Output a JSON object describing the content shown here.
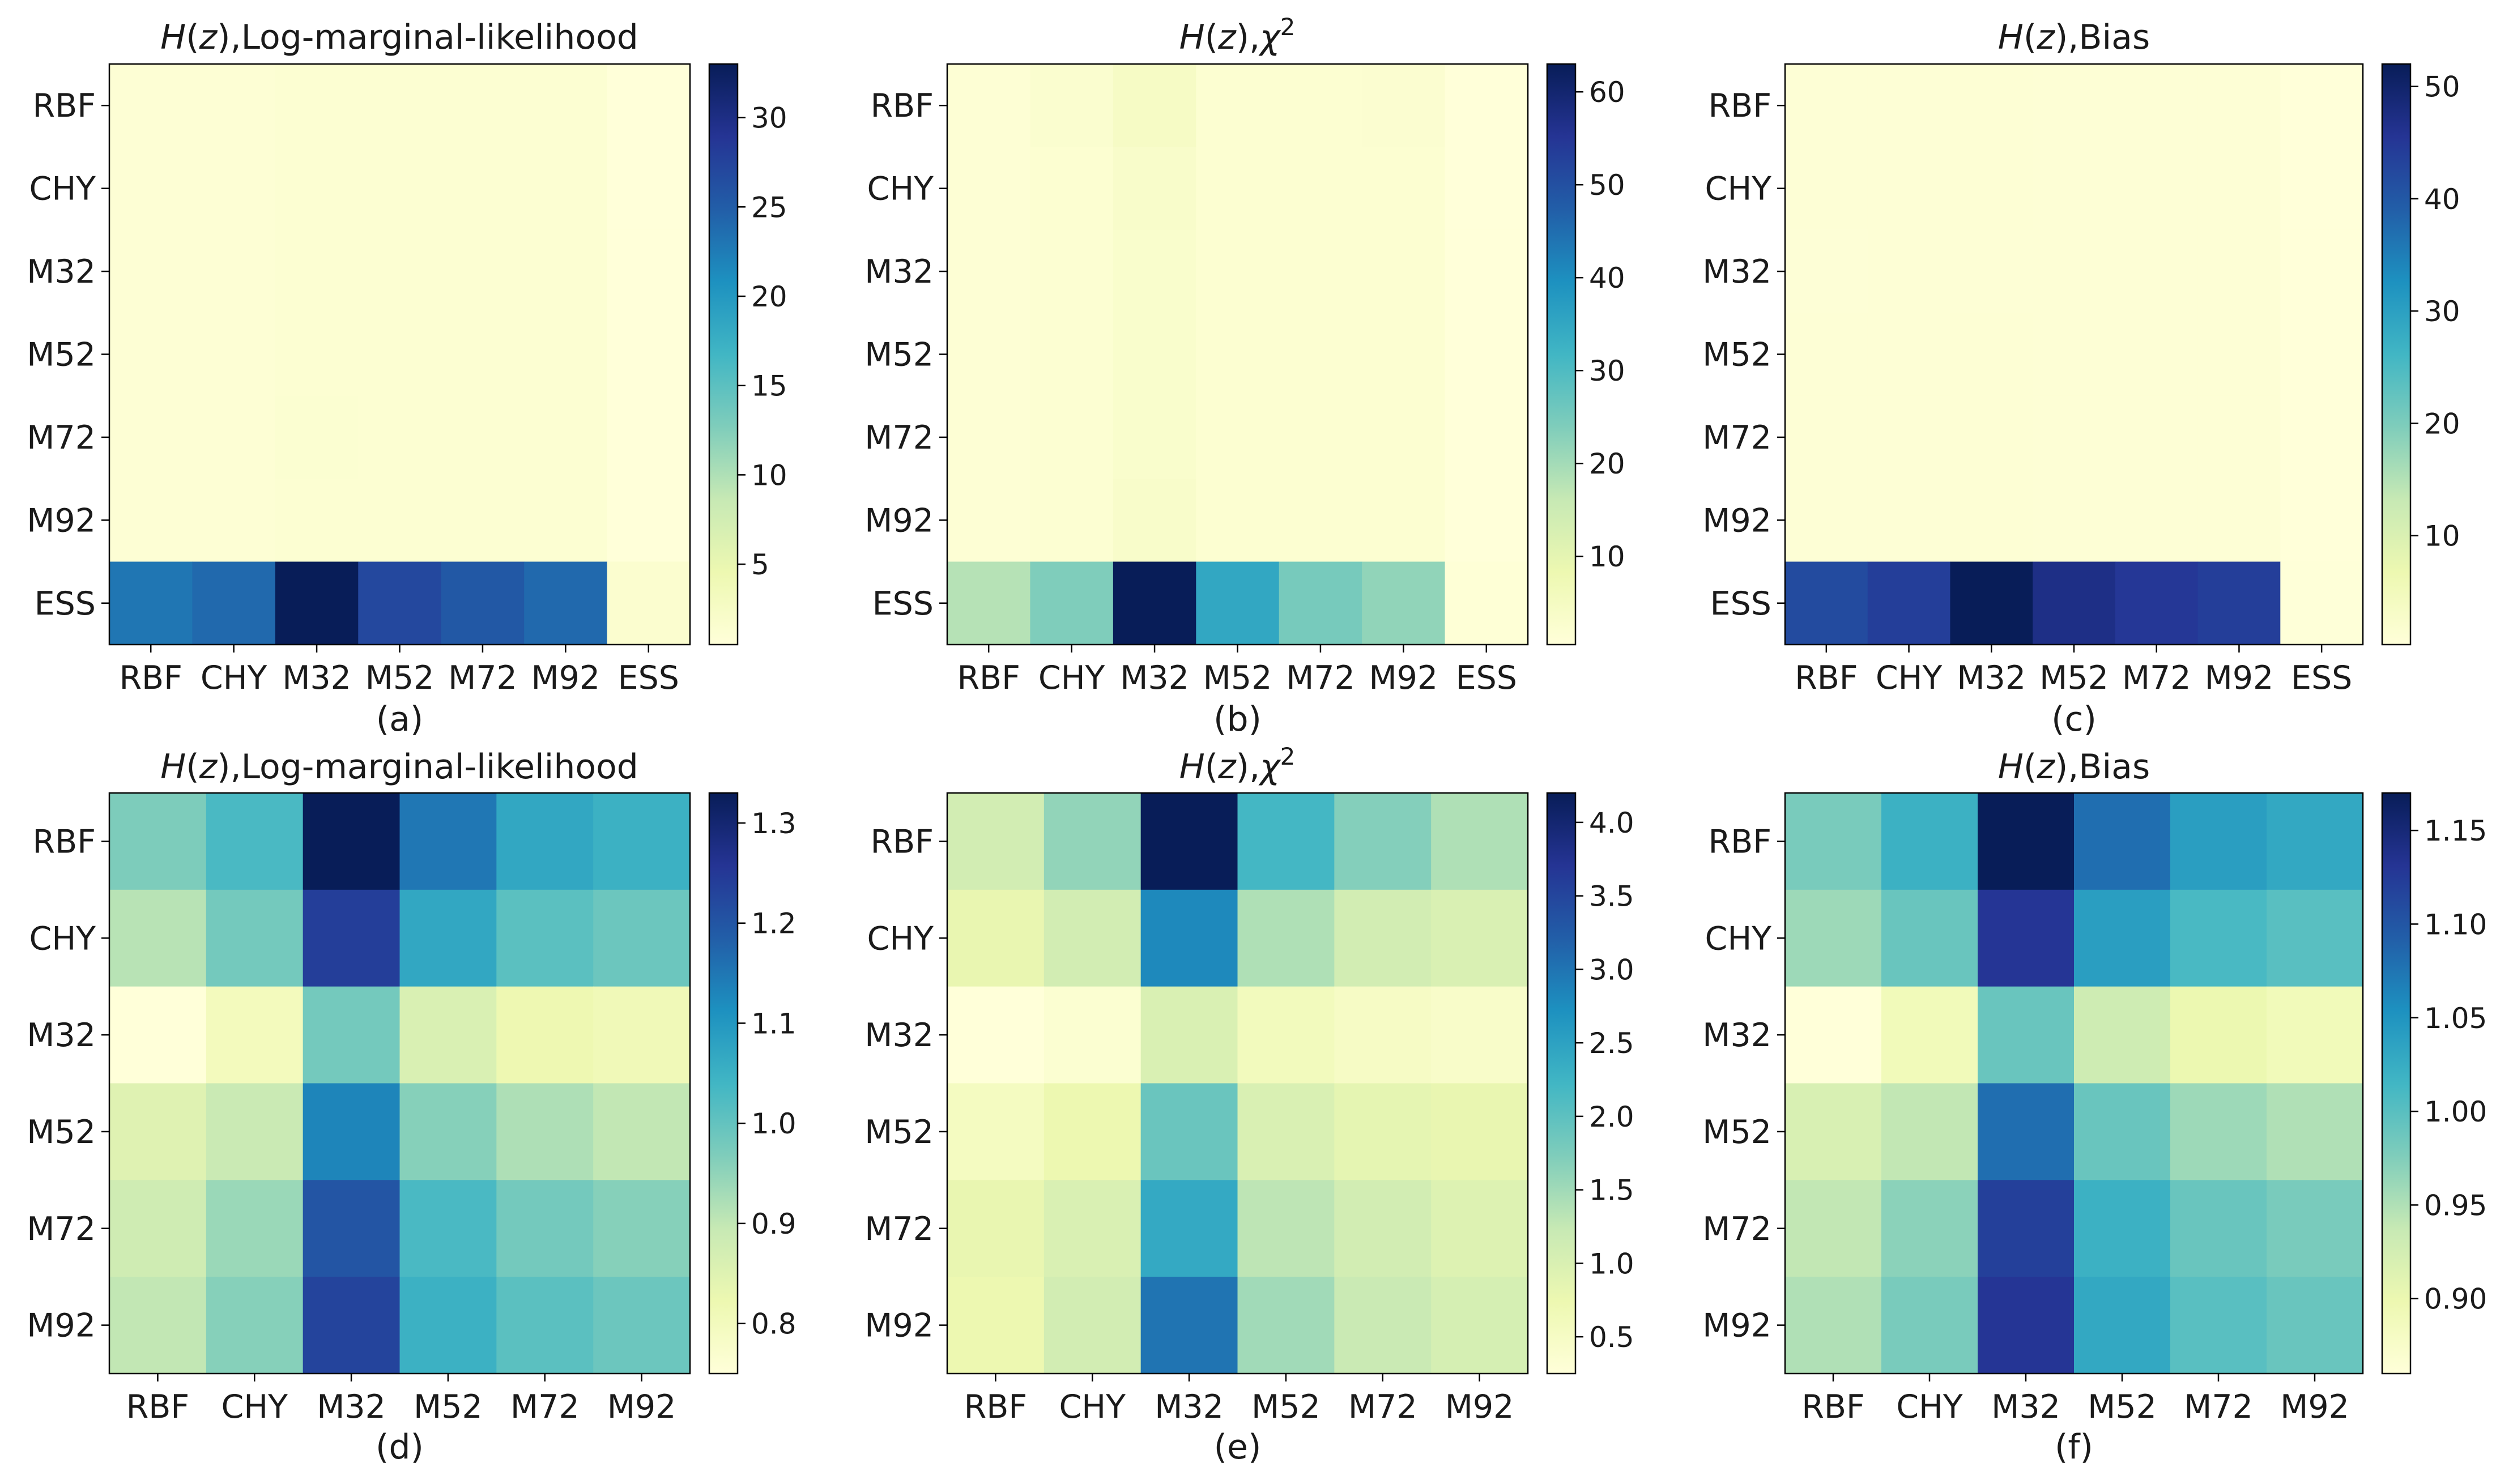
{
  "colormap": [
    "#ffffd9",
    "#edf8b1",
    "#c7e9b4",
    "#7fcdbb",
    "#41b6c4",
    "#1d91c0",
    "#225ea8",
    "#253494",
    "#081d58"
  ],
  "chart_data": [
    {
      "type": "heatmap",
      "title": {
        "prefix": "H",
        "var": "(z)",
        "rest": ",Log-marginal-likelihood",
        "sup": ""
      },
      "panel_label": "(a)",
      "x_labels": [
        "RBF",
        "CHY",
        "M32",
        "M52",
        "M72",
        "M92",
        "ESS"
      ],
      "y_labels": [
        "RBF",
        "CHY",
        "M32",
        "M52",
        "M72",
        "M92",
        "ESS"
      ],
      "values": [
        [
          1.0,
          1.0,
          1.2,
          1.2,
          1.2,
          1.2,
          0.5
        ],
        [
          1.0,
          1.0,
          1.2,
          1.2,
          1.2,
          1.2,
          0.5
        ],
        [
          1.0,
          1.0,
          1.2,
          1.2,
          1.2,
          1.2,
          0.5
        ],
        [
          1.0,
          1.0,
          1.2,
          1.2,
          1.2,
          1.2,
          0.5
        ],
        [
          1.0,
          1.0,
          1.3,
          1.2,
          1.2,
          1.2,
          0.5
        ],
        [
          1.0,
          1.0,
          1.2,
          1.2,
          1.2,
          1.2,
          0.5
        ],
        [
          23.0,
          24.0,
          33.0,
          27.0,
          25.5,
          24.0,
          1.5
        ]
      ],
      "vmin": 0.5,
      "vmax": 33,
      "colorbar_ticks": [
        5,
        10,
        15,
        20,
        25,
        30
      ]
    },
    {
      "type": "heatmap",
      "title": {
        "prefix": "H",
        "var": "(z)",
        "rest": ",χ",
        "sup": "2"
      },
      "panel_label": "(b)",
      "x_labels": [
        "RBF",
        "CHY",
        "M32",
        "M52",
        "M72",
        "M92",
        "ESS"
      ],
      "y_labels": [
        "RBF",
        "CHY",
        "M32",
        "M52",
        "M72",
        "M92",
        "ESS"
      ],
      "values": [
        [
          1.5,
          2.5,
          4.5,
          2.0,
          2.0,
          2.2,
          0.5
        ],
        [
          1.5,
          2.0,
          3.5,
          2.0,
          2.0,
          2.0,
          0.5
        ],
        [
          1.5,
          1.8,
          3.0,
          2.0,
          2.0,
          2.0,
          0.5
        ],
        [
          1.5,
          1.8,
          3.0,
          2.0,
          2.0,
          2.0,
          0.5
        ],
        [
          1.5,
          1.8,
          3.0,
          2.0,
          2.0,
          2.0,
          0.5
        ],
        [
          1.5,
          1.8,
          3.5,
          2.0,
          2.0,
          2.0,
          0.5
        ],
        [
          18.0,
          24.0,
          63.0,
          35.0,
          25.0,
          22.0,
          1.0
        ]
      ],
      "vmin": 0.5,
      "vmax": 63,
      "colorbar_ticks": [
        10,
        20,
        30,
        40,
        50,
        60
      ]
    },
    {
      "type": "heatmap",
      "title": {
        "prefix": "H",
        "var": "(z)",
        "rest": ",Bias",
        "sup": ""
      },
      "panel_label": "(c)",
      "x_labels": [
        "RBF",
        "CHY",
        "M32",
        "M52",
        "M72",
        "M92",
        "ESS"
      ],
      "y_labels": [
        "RBF",
        "CHY",
        "M32",
        "M52",
        "M72",
        "M92",
        "ESS"
      ],
      "values": [
        [
          0.9,
          0.9,
          1.05,
          0.95,
          0.95,
          0.95,
          0.3
        ],
        [
          0.9,
          0.95,
          1.1,
          1.0,
          1.0,
          1.0,
          0.3
        ],
        [
          0.85,
          0.9,
          1.0,
          0.95,
          0.9,
          0.9,
          0.3
        ],
        [
          0.9,
          0.95,
          1.05,
          1.0,
          0.95,
          0.95,
          0.3
        ],
        [
          0.9,
          0.95,
          1.1,
          1.0,
          1.0,
          1.0,
          0.3
        ],
        [
          0.9,
          0.95,
          1.1,
          1.0,
          1.0,
          1.0,
          0.3
        ],
        [
          42.0,
          44.0,
          52.0,
          47.0,
          45.0,
          44.0,
          0.5
        ]
      ],
      "vmin": 0.3,
      "vmax": 52,
      "colorbar_ticks": [
        10,
        20,
        30,
        40,
        50
      ]
    },
    {
      "type": "heatmap",
      "title": {
        "prefix": "H",
        "var": "(z)",
        "rest": ",Log-marginal-likelihood",
        "sup": ""
      },
      "panel_label": "(d)",
      "x_labels": [
        "RBF",
        "CHY",
        "M32",
        "M52",
        "M72",
        "M92"
      ],
      "y_labels": [
        "RBF",
        "CHY",
        "M32",
        "M52",
        "M72",
        "M92"
      ],
      "values": [
        [
          0.97,
          1.03,
          1.33,
          1.15,
          1.07,
          1.05
        ],
        [
          0.91,
          0.98,
          1.24,
          1.07,
          1.01,
          0.99
        ],
        [
          0.75,
          0.8,
          0.98,
          0.86,
          0.82,
          0.81
        ],
        [
          0.85,
          0.89,
          1.13,
          0.96,
          0.92,
          0.9
        ],
        [
          0.88,
          0.94,
          1.2,
          1.03,
          0.98,
          0.96
        ],
        [
          0.9,
          0.96,
          1.23,
          1.05,
          1.01,
          0.99
        ]
      ],
      "vmin": 0.75,
      "vmax": 1.33,
      "colorbar_ticks": [
        0.8,
        0.9,
        1.0,
        1.1,
        1.2,
        1.3
      ],
      "colorbar_tick_labels": [
        "0.8",
        "0.9",
        "1.0",
        "1.1",
        "1.2",
        "1.3"
      ]
    },
    {
      "type": "heatmap",
      "title": {
        "prefix": "H",
        "var": "(z)",
        "rest": ",χ",
        "sup": "2"
      },
      "panel_label": "(e)",
      "x_labels": [
        "RBF",
        "CHY",
        "M32",
        "M52",
        "M72",
        "M92"
      ],
      "y_labels": [
        "RBF",
        "CHY",
        "M32",
        "M52",
        "M72",
        "M92"
      ],
      "values": [
        [
          1.1,
          1.6,
          4.2,
          2.2,
          1.7,
          1.4
        ],
        [
          0.8,
          1.1,
          2.8,
          1.4,
          1.1,
          1.0
        ],
        [
          0.25,
          0.35,
          1.0,
          0.6,
          0.5,
          0.45
        ],
        [
          0.55,
          0.75,
          1.9,
          1.0,
          0.85,
          0.8
        ],
        [
          0.8,
          1.0,
          2.4,
          1.3,
          1.1,
          0.95
        ],
        [
          0.75,
          1.1,
          3.0,
          1.5,
          1.2,
          1.05
        ]
      ],
      "vmin": 0.25,
      "vmax": 4.2,
      "colorbar_ticks": [
        0.5,
        1.0,
        1.5,
        2.0,
        2.5,
        3.0,
        3.5,
        4.0
      ],
      "colorbar_tick_labels": [
        "0.5",
        "1.0",
        "1.5",
        "2.0",
        "2.5",
        "3.0",
        "3.5",
        "4.0"
      ]
    },
    {
      "type": "heatmap",
      "title": {
        "prefix": "H",
        "var": "(z)",
        "rest": ",Bias",
        "sup": ""
      },
      "panel_label": "(f)",
      "x_labels": [
        "RBF",
        "CHY",
        "M32",
        "M52",
        "M72",
        "M92"
      ],
      "y_labels": [
        "RBF",
        "CHY",
        "M32",
        "M52",
        "M72",
        "M92"
      ],
      "values": [
        [
          0.98,
          1.02,
          1.17,
          1.08,
          1.04,
          1.03
        ],
        [
          0.96,
          0.99,
          1.13,
          1.04,
          1.01,
          1.0
        ],
        [
          0.86,
          0.89,
          0.99,
          0.93,
          0.9,
          0.89
        ],
        [
          0.92,
          0.94,
          1.08,
          0.99,
          0.96,
          0.95
        ],
        [
          0.94,
          0.97,
          1.12,
          1.02,
          0.99,
          0.98
        ],
        [
          0.95,
          0.98,
          1.13,
          1.03,
          1.0,
          0.99
        ]
      ],
      "vmin": 0.86,
      "vmax": 1.17,
      "colorbar_ticks": [
        0.9,
        0.95,
        1.0,
        1.05,
        1.1,
        1.15
      ],
      "colorbar_tick_labels": [
        "0.90",
        "0.95",
        "1.00",
        "1.05",
        "1.10",
        "1.15"
      ]
    }
  ]
}
